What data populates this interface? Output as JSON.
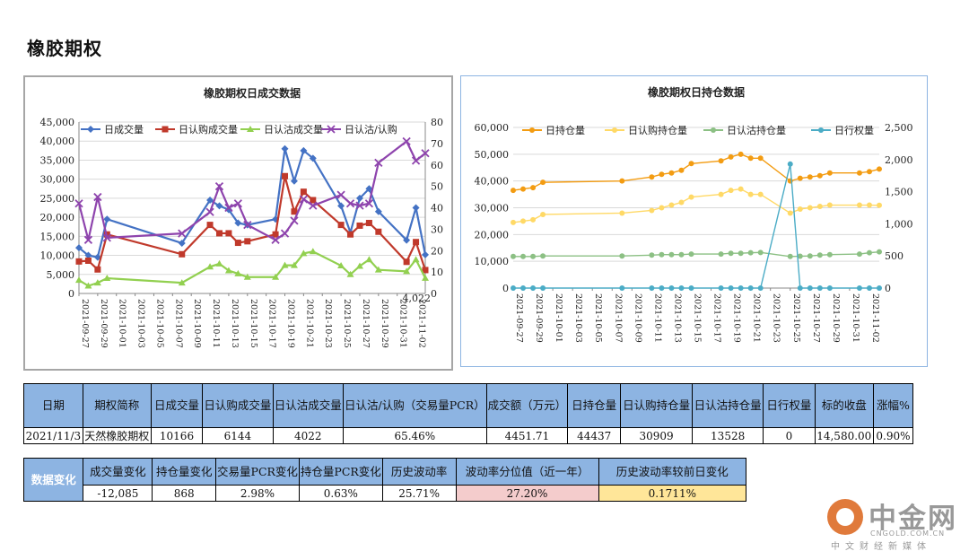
{
  "page_title": "橡胶期权",
  "chart_data": [
    {
      "type": "line",
      "title": "橡胶期权日成交数据",
      "dates": [
        "2021-09-27",
        "2021-09-28",
        "2021-09-29",
        "2021-09-30",
        "2021-10-08",
        "2021-10-11",
        "2021-10-12",
        "2021-10-13",
        "2021-10-14",
        "2021-10-15",
        "2021-10-18",
        "2021-10-19",
        "2021-10-20",
        "2021-10-21",
        "2021-10-22",
        "2021-10-25",
        "2021-10-26",
        "2021-10-27",
        "2021-10-28",
        "2021-10-29",
        "2021-11-01",
        "2021-11-02",
        "2021-11-03"
      ],
      "x_ticks": [
        "2021-09-27",
        "2021-09-29",
        "2021-10-01",
        "2021-10-03",
        "2021-10-05",
        "2021-10-07",
        "2021-10-09",
        "2021-10-11",
        "2021-10-13",
        "2021-10-15",
        "2021-10-17",
        "2021-10-19",
        "2021-10-21",
        "2021-10-23",
        "2021-10-25",
        "2021-10-27",
        "2021-10-29",
        "2021-10-31",
        "2021-11-02"
      ],
      "x_range": [
        "2021-09-27",
        "2021-11-03"
      ],
      "y_left_ticks": [
        "0",
        "5,000",
        "10,000",
        "15,000",
        "20,000",
        "25,000",
        "30,000",
        "35,000",
        "40,000",
        "45,000"
      ],
      "y_left_range": [
        0,
        45000
      ],
      "y_right_ticks": [
        "0",
        "10",
        "20",
        "30",
        "40",
        "50",
        "60",
        "70",
        "80"
      ],
      "y_right_range": [
        0,
        80
      ],
      "annotation": "4,022",
      "annotation_value": 4022,
      "legend_position": "top",
      "series": [
        {
          "name": "日成交量",
          "axis": "left",
          "color": "#4472c4",
          "marker": "diamond",
          "values": [
            12000,
            10000,
            9500,
            19500,
            13200,
            24500,
            23000,
            22000,
            18500,
            18000,
            19500,
            38000,
            29500,
            37500,
            35500,
            23000,
            16000,
            25000,
            27500,
            21500,
            14000,
            22500,
            10166
          ]
        },
        {
          "name": "日认购成交量",
          "axis": "left",
          "color": "#c0392b",
          "marker": "square",
          "values": [
            8400,
            8600,
            6300,
            15500,
            10300,
            18000,
            15800,
            15800,
            13300,
            13700,
            15500,
            30800,
            21500,
            26700,
            24500,
            18000,
            15500,
            17800,
            18500,
            16200,
            8300,
            13500,
            6144
          ]
        },
        {
          "name": "日认沽成交量",
          "axis": "left",
          "color": "#92d050",
          "marker": "triangle",
          "values": [
            3500,
            2000,
            2800,
            4000,
            2800,
            7000,
            7800,
            6000,
            5200,
            4300,
            4300,
            7400,
            7400,
            10500,
            11000,
            7300,
            5000,
            7200,
            8900,
            6200,
            5800,
            8900,
            4022
          ]
        },
        {
          "name": "日认沽/认购",
          "axis": "right",
          "color": "#8e44ad",
          "marker": "x",
          "values": [
            42,
            25,
            45,
            26,
            28,
            38,
            50,
            40,
            42,
            32,
            25,
            28,
            34,
            44,
            41,
            46,
            42,
            41,
            42,
            61,
            71,
            62,
            65.46
          ]
        }
      ]
    },
    {
      "type": "line",
      "title": "橡胶期权日持仓数据",
      "dates": [
        "2021-09-27",
        "2021-09-28",
        "2021-09-29",
        "2021-09-30",
        "2021-10-08",
        "2021-10-11",
        "2021-10-12",
        "2021-10-13",
        "2021-10-14",
        "2021-10-15",
        "2021-10-18",
        "2021-10-19",
        "2021-10-20",
        "2021-10-21",
        "2021-10-22",
        "2021-10-25",
        "2021-10-26",
        "2021-10-27",
        "2021-10-28",
        "2021-10-29",
        "2021-11-01",
        "2021-11-02",
        "2021-11-03"
      ],
      "x_ticks": [
        "2021-09-27",
        "2021-09-29",
        "2021-10-01",
        "2021-10-03",
        "2021-10-05",
        "2021-10-07",
        "2021-10-09",
        "2021-10-11",
        "2021-10-13",
        "2021-10-15",
        "2021-10-17",
        "2021-10-19",
        "2021-10-21",
        "2021-10-23",
        "2021-10-25",
        "2021-10-27",
        "2021-10-29",
        "2021-10-31",
        "2021-11-02"
      ],
      "x_range": [
        "2021-09-27",
        "2021-11-03"
      ],
      "y_left_ticks": [
        "0",
        "10,000",
        "20,000",
        "30,000",
        "40,000",
        "50,000",
        "60,000"
      ],
      "y_left_range": [
        0,
        60000
      ],
      "y_right_ticks": [
        "0",
        "500",
        "1,000",
        "1,500",
        "2,000",
        "2,500"
      ],
      "y_right_range": [
        0,
        2500
      ],
      "legend_position": "top",
      "series": [
        {
          "name": "日持仓量",
          "axis": "left",
          "color": "#f39c12",
          "values": [
            36500,
            37000,
            37500,
            39500,
            40000,
            41500,
            42500,
            43000,
            44000,
            46500,
            47500,
            49000,
            50000,
            48500,
            48500,
            40000,
            41000,
            41500,
            42000,
            43000,
            43000,
            43500,
            44437
          ]
        },
        {
          "name": "日认购持仓量",
          "axis": "left",
          "color": "#ffd966",
          "values": [
            24500,
            25000,
            25500,
            27500,
            28000,
            29000,
            30000,
            31000,
            32000,
            34000,
            35000,
            36500,
            37000,
            35000,
            35000,
            28000,
            29500,
            30000,
            30500,
            31000,
            31000,
            31000,
            30909
          ]
        },
        {
          "name": "日认沽持仓量",
          "axis": "left",
          "color": "#8cc084",
          "values": [
            11800,
            11800,
            11800,
            12000,
            12000,
            12300,
            12500,
            12500,
            12500,
            12700,
            12700,
            13000,
            13000,
            13200,
            13300,
            11800,
            11900,
            12000,
            12300,
            12500,
            12700,
            13200,
            13528
          ]
        },
        {
          "name": "日行权量",
          "axis": "right",
          "color": "#4bacc6",
          "values": [
            0,
            0,
            0,
            0,
            0,
            0,
            0,
            0,
            0,
            0,
            0,
            0,
            0,
            0,
            0,
            1930,
            0,
            0,
            0,
            0,
            0,
            0,
            0
          ]
        }
      ]
    }
  ],
  "info_table": {
    "headers": [
      "日期",
      "期权简称",
      "日成交量",
      "日认购成交量",
      "日认沽成交量",
      "日认沽/认购（交易量PCR）",
      "成交额（万元）",
      "日持仓量",
      "日认购持仓量",
      "日认沽持仓量",
      "日行权量",
      "标的收盘",
      "涨幅%"
    ],
    "row": [
      "2021/11/3",
      "天然橡胶期权",
      "10166",
      "6144",
      "4022",
      "65.46%",
      "4451.71",
      "44437",
      "30909",
      "13528",
      "0",
      "14,580.00",
      "0.90%"
    ]
  },
  "change_table": {
    "side_label": "数据变化",
    "headers": [
      "成交量变化",
      "持仓量变化",
      "交易量PCR变化",
      "持仓量PCR变化",
      "历史波动率",
      "波动率分位值（近一年）",
      "历史波动率较前日变化"
    ],
    "row": [
      "-12,085",
      "868",
      "2.98%",
      "0.63%",
      "25.71%",
      "27.20%",
      "0.1711%"
    ]
  },
  "watermark": {
    "name": "中金网",
    "url": "CNGOLD.COM.CN",
    "slogan": "中文财经新媒体",
    "color": "#e07a3b"
  }
}
